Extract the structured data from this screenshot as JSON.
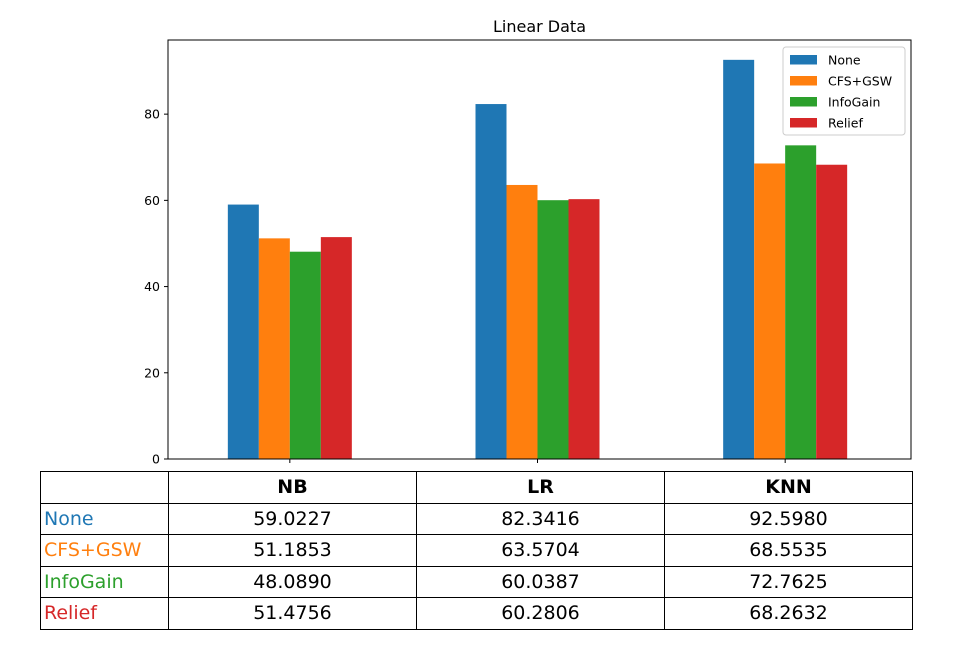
{
  "chart_data": {
    "type": "bar",
    "title": "Linear Data",
    "categories": [
      "NB",
      "LR",
      "KNN"
    ],
    "series": [
      {
        "name": "None",
        "color": "#1f77b4",
        "values": [
          59.0227,
          82.3416,
          92.598
        ]
      },
      {
        "name": "CFS+GSW",
        "color": "#ff7f0e",
        "values": [
          51.1853,
          63.5704,
          68.5535
        ]
      },
      {
        "name": "InfoGain",
        "color": "#2ca02c",
        "values": [
          48.089,
          60.0387,
          72.7625
        ]
      },
      {
        "name": "Relief",
        "color": "#d62728",
        "values": [
          51.4756,
          60.2806,
          68.2632
        ]
      }
    ],
    "ylim": [
      0,
      97.2
    ],
    "yticks": [
      0,
      20,
      40,
      60,
      80
    ],
    "legend": "top-right",
    "grid": false
  },
  "table": {
    "headers": [
      "",
      "NB",
      "LR",
      "KNN"
    ],
    "rows": [
      {
        "label": "None",
        "color": "#1f77b4",
        "cells": [
          "59.0227",
          "82.3416",
          "92.5980"
        ]
      },
      {
        "label": "CFS+GSW",
        "color": "#ff7f0e",
        "cells": [
          "51.1853",
          "63.5704",
          "68.5535"
        ]
      },
      {
        "label": "InfoGain",
        "color": "#2ca02c",
        "cells": [
          "48.0890",
          "60.0387",
          "72.7625"
        ]
      },
      {
        "label": "Relief",
        "color": "#d62728",
        "cells": [
          "51.4756",
          "60.2806",
          "68.2632"
        ]
      }
    ]
  }
}
